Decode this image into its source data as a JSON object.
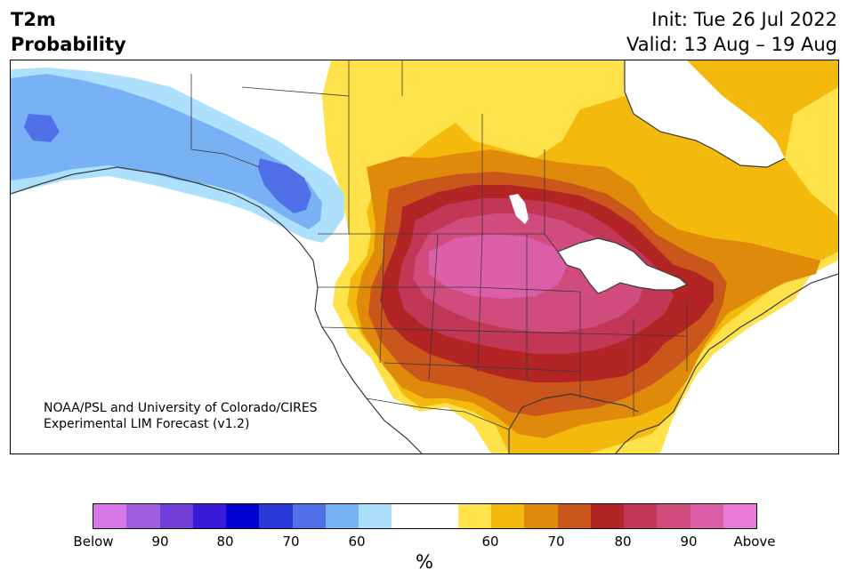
{
  "title": {
    "line1": "T2m",
    "line2": "Probability"
  },
  "dates": {
    "init": "Init: Tue 26 Jul 2022",
    "valid": "Valid: 13 Aug – 19 Aug"
  },
  "credit": {
    "line1": "NOAA/PSL and University of Colorado/CIRES",
    "line2": "Experimental LIM Forecast (v1.2)"
  },
  "colorbar": {
    "colors": [
      "#d878e8",
      "#a05ce0",
      "#7040d8",
      "#3a1ad8",
      "#0000d0",
      "#2a3ad8",
      "#5070e8",
      "#78b2f4",
      "#ace0fc",
      "#ffffff",
      "#ffffff",
      "#ffe14a",
      "#f3b90c",
      "#e08a0c",
      "#cb561b",
      "#b32424",
      "#c23656",
      "#d04c7c",
      "#dc5ea8",
      "#e87ad8"
    ],
    "labels": [
      "Below",
      "90",
      "80",
      "70",
      "60",
      "60",
      "70",
      "80",
      "90",
      "Above"
    ],
    "unit": "%"
  },
  "map_layers": {
    "gray": "#3a3a3a",
    "yellow": "#ffe14a",
    "gold": "#f3b90c",
    "orange": "#e08a0c",
    "darkorange": "#cb561b",
    "red": "#b32424",
    "crimson": "#c23656",
    "rose": "#d04c7c",
    "pink": "#dc5ea8",
    "lightblue": "#ace0fc",
    "blue": "#78b2f4",
    "royal": "#5070e8"
  }
}
